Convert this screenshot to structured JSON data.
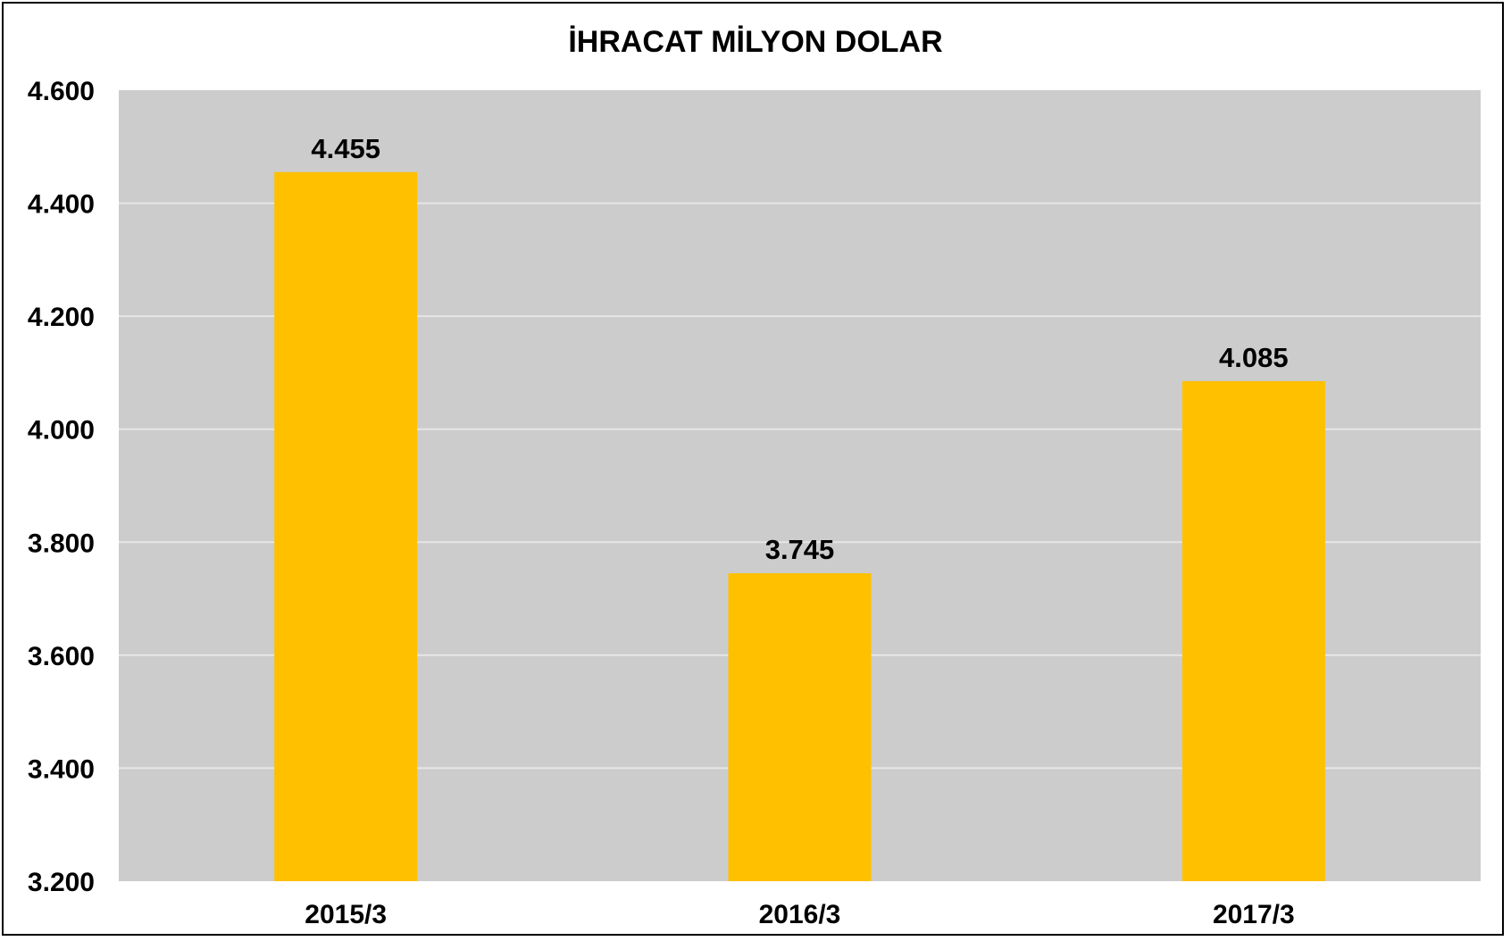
{
  "chart_data": {
    "type": "bar",
    "title": "İHRACAT MİLYON DOLAR",
    "xlabel": "",
    "ylabel": "",
    "categories": [
      "2015/3",
      "2016/3",
      "2017/3"
    ],
    "values": [
      4455,
      3745,
      4085
    ],
    "value_labels": [
      "4.455",
      "3.745",
      "4.085"
    ],
    "ylim": [
      3200,
      4600
    ],
    "yticks": [
      3200,
      3400,
      3600,
      3800,
      4000,
      4200,
      4400,
      4600
    ],
    "ytick_labels": [
      "3.200",
      "3.400",
      "3.600",
      "3.800",
      "4.000",
      "4.200",
      "4.400",
      "4.600"
    ],
    "grid": true,
    "legend": "none",
    "colors": {
      "bar": "#FFC000",
      "plot_background": "#CCCCCC",
      "gridline": "#E6E6E6",
      "text": "#000000"
    }
  }
}
